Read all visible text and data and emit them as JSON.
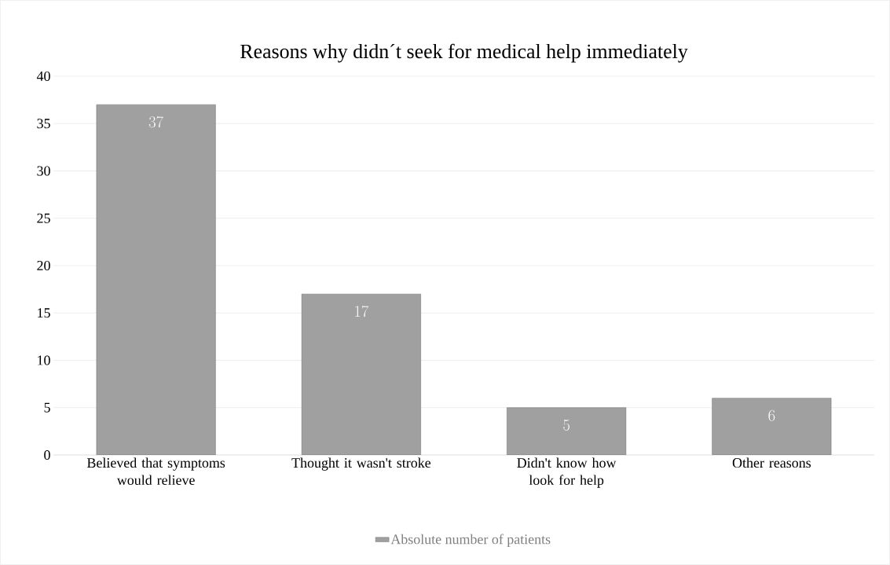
{
  "chart_data": {
    "type": "bar",
    "title": "Reasons why didn´t seek for medical help immediately",
    "categories": [
      "Believed that symptoms would relieve",
      "Thought it wasn't stroke",
      "Didn't know how look for help",
      "Other reasons"
    ],
    "series": [
      {
        "name": "Absolute number of patients",
        "color": "#a0a0a0",
        "values": [
          37,
          17,
          5,
          6
        ]
      }
    ],
    "ylim": [
      0,
      40
    ],
    "yticks": [
      0,
      5,
      10,
      15,
      20,
      25,
      30,
      35,
      40
    ],
    "grid": "y",
    "legend": "bottom",
    "data_labels": true
  }
}
